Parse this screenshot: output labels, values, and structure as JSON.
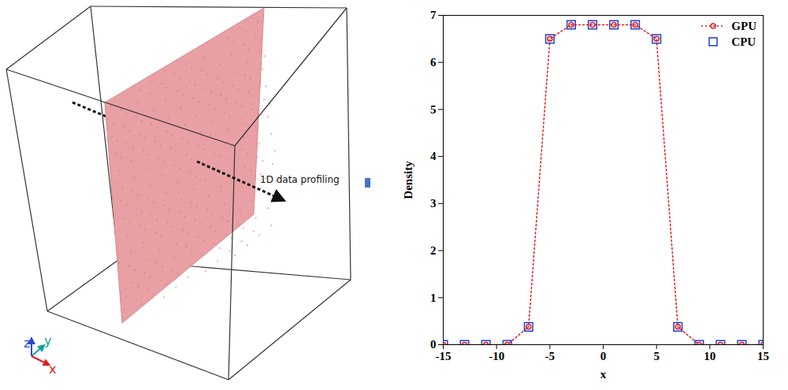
{
  "diagram": {
    "arrow_label": "1D data profiling",
    "axes": [
      "z",
      "y",
      "x"
    ]
  },
  "chart_data": {
    "type": "line",
    "x": [
      -15,
      -13,
      -11,
      -9,
      -7,
      -5,
      -3,
      -1,
      1,
      3,
      5,
      7,
      9,
      11,
      13,
      15
    ],
    "series": [
      {
        "name": "GPU",
        "color": "#e41a1c",
        "marker": "circle",
        "line_style": "dotted",
        "values": [
          0,
          0,
          0,
          0,
          0.38,
          6.5,
          6.8,
          6.8,
          6.8,
          6.8,
          6.5,
          0.38,
          0,
          0,
          0,
          0
        ]
      },
      {
        "name": "CPU",
        "color": "#1f3fd0",
        "marker": "square",
        "line_style": "none",
        "values": [
          0,
          0,
          0,
          0,
          0.38,
          6.5,
          6.8,
          6.8,
          6.8,
          6.8,
          6.5,
          0.38,
          0,
          0,
          0,
          0
        ]
      }
    ],
    "x_label": "x",
    "y_label": "Density",
    "xlim": [
      -15,
      15
    ],
    "xticks": [
      -15,
      -10,
      -5,
      0,
      5,
      10,
      15
    ],
    "ylim": [
      0,
      7
    ],
    "yticks": [
      0,
      1,
      2,
      3,
      4,
      5,
      6,
      7
    ],
    "legend": "top-right"
  }
}
